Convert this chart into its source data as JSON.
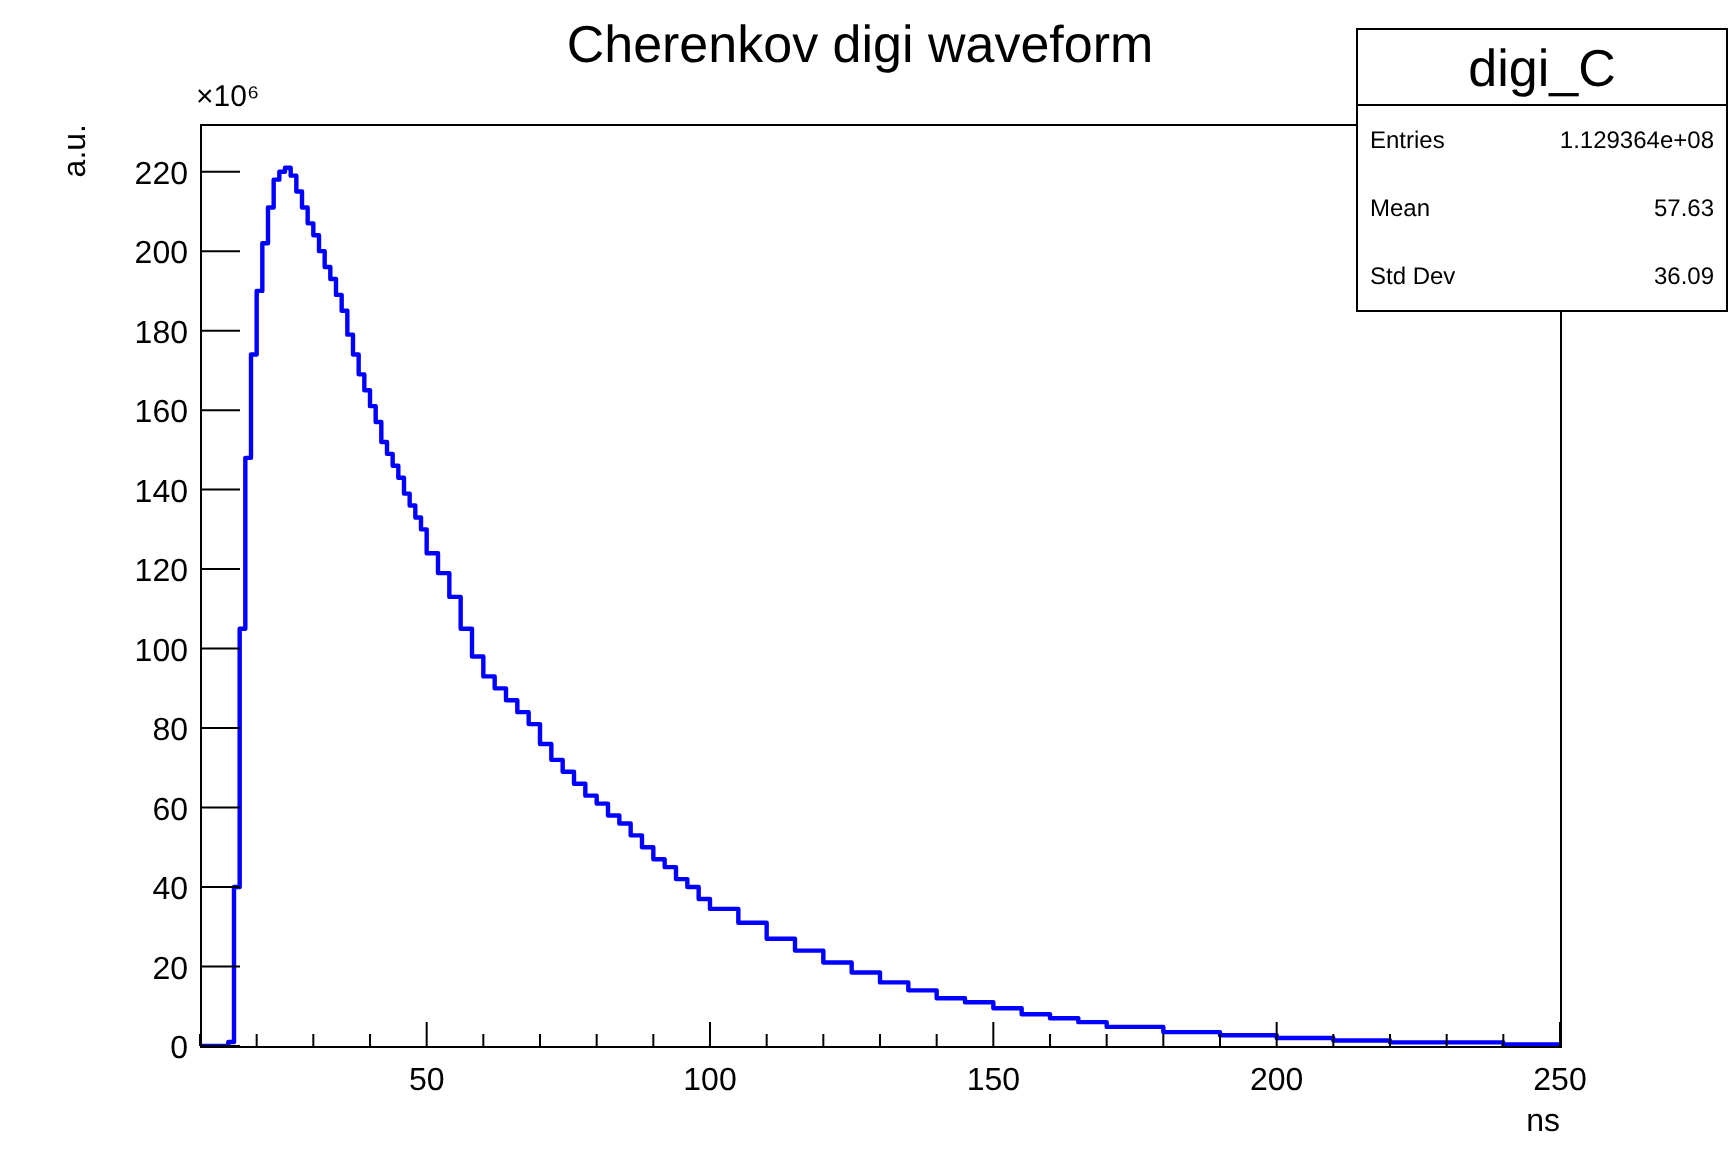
{
  "chart_data": {
    "type": "histogram",
    "title": "Cherenkov digi waveform",
    "xlabel": "ns",
    "ylabel": "a.u.",
    "annotations": [
      "×10⁶",
      "digi_C",
      "Entries",
      "1.129364e+08",
      "Mean",
      "57.63",
      "Std Dev",
      "36.09"
    ],
    "color": "#0000ff",
    "bins": [
      10,
      15,
      16,
      17,
      18,
      19,
      20,
      21,
      22,
      23,
      24,
      25,
      26,
      27,
      28,
      29,
      30,
      31,
      32,
      33,
      34,
      35,
      36,
      37,
      38,
      39,
      40,
      41,
      42,
      43,
      44,
      45,
      46,
      47,
      48,
      49,
      50,
      52,
      54,
      56,
      58,
      60,
      62,
      64,
      66,
      68,
      70,
      72,
      74,
      76,
      78,
      80,
      82,
      84,
      86,
      88,
      90,
      92,
      94,
      96,
      98,
      100,
      105,
      110,
      115,
      120,
      125,
      130,
      135,
      140,
      145,
      150,
      155,
      160,
      165,
      170,
      180,
      190,
      200,
      210,
      220,
      230,
      240,
      250
    ],
    "values": [
      0,
      1,
      40,
      105,
      148,
      174,
      190,
      202,
      211,
      218,
      220,
      221,
      219,
      215,
      211,
      207,
      204,
      200,
      196,
      193,
      189,
      185,
      179,
      174,
      169,
      165,
      161,
      157,
      152,
      149,
      146,
      143,
      139,
      136,
      133,
      130,
      124,
      119,
      113,
      105,
      98,
      93,
      90,
      87,
      84,
      81,
      76,
      72,
      69,
      66,
      63,
      61,
      58,
      56,
      53,
      50,
      47,
      45,
      42,
      40,
      37,
      34.5,
      31,
      27,
      24,
      21,
      18.5,
      16,
      14,
      12,
      11,
      9.5,
      8,
      7,
      6,
      4.8,
      3.5,
      2.7,
      2,
      1.4,
      0.9,
      0.9,
      0.4
    ],
    "xlim": [
      10,
      250
    ],
    "xticks": [
      {
        "value": 10,
        "label": null
      },
      {
        "value": 20,
        "label": null
      },
      {
        "value": 30,
        "label": null
      },
      {
        "value": 40,
        "label": null
      },
      50,
      {
        "value": 60,
        "label": null
      },
      {
        "value": 70,
        "label": null
      },
      {
        "value": 80,
        "label": null
      },
      {
        "value": 90,
        "label": null
      },
      100,
      {
        "value": 110,
        "label": null
      },
      {
        "value": 120,
        "label": null
      },
      {
        "value": 130,
        "label": null
      },
      {
        "value": 140,
        "label": null
      },
      150,
      {
        "value": 160,
        "label": null
      },
      {
        "value": 170,
        "label": null
      },
      {
        "value": 180,
        "label": null
      },
      {
        "value": 190,
        "label": null
      },
      200,
      {
        "value": 210,
        "label": null
      },
      {
        "value": 220,
        "label": null
      },
      {
        "value": 230,
        "label": null
      },
      {
        "value": 240,
        "label": null
      },
      250
    ],
    "ylim": [
      0,
      232
    ],
    "yticks": [
      0,
      20,
      40,
      60,
      80,
      100,
      120,
      140,
      160,
      180,
      200,
      220
    ]
  }
}
